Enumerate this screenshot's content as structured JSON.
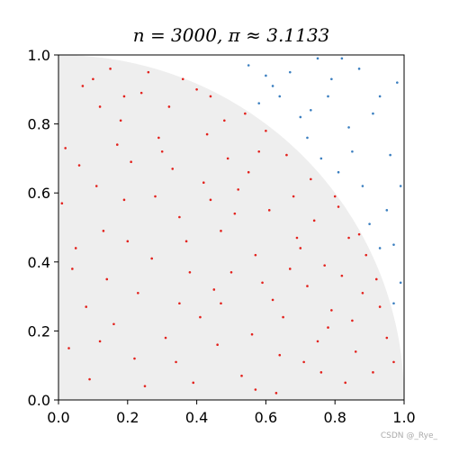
{
  "chart_data": {
    "type": "scatter",
    "title": "n = 3000, π ≈ 3.1133",
    "watermark": "CSDN @_Rye_",
    "xlim": [
      0,
      1
    ],
    "ylim": [
      0,
      1
    ],
    "xticks": [
      {
        "value": 0,
        "label": "0.0"
      },
      0.2,
      0.4,
      0.6,
      0.8,
      {
        "value": 1,
        "label": "1.0"
      }
    ],
    "yticks": [
      {
        "value": 0,
        "label": "0.0"
      },
      0.2,
      0.4,
      0.6,
      0.8,
      {
        "value": 1,
        "label": "1.0"
      }
    ],
    "series": [
      {
        "color": "#e3211c",
        "x": [
          0.12,
          0.45,
          0.78,
          0.05,
          0.33,
          0.61,
          0.22,
          0.91,
          0.48,
          0.15,
          0.67,
          0.39,
          0.84,
          0.02,
          0.27,
          0.56,
          0.73,
          0.19,
          0.44,
          0.63,
          0.08,
          0.36,
          0.52,
          0.88,
          0.29,
          0.71,
          0.14,
          0.47,
          0.95,
          0.58,
          0.24,
          0.81,
          0.03,
          0.41,
          0.69,
          0.11,
          0.53,
          0.35,
          0.77,
          0.18,
          0.62,
          0.07,
          0.49,
          0.86,
          0.31,
          0.74,
          0.13,
          0.57,
          0.26,
          0.93,
          0.42,
          0.66,
          0.09,
          0.38,
          0.83,
          0.21,
          0.54,
          0.79,
          0.01,
          0.46,
          0.68,
          0.16,
          0.59,
          0.32,
          0.89,
          0.04,
          0.51,
          0.72,
          0.25,
          0.43,
          0.97,
          0.17,
          0.64,
          0.37,
          0.85,
          0.28,
          0.55,
          0.76,
          0.1,
          0.47,
          0.6,
          0.23,
          0.82,
          0.34,
          0.06,
          0.7,
          0.4,
          0.87,
          0.2,
          0.5,
          0.75,
          0.3,
          0.65,
          0.12,
          0.44,
          0.92,
          0.57,
          0.19,
          0.8,
          0.35
        ],
        "values": [
          0.85,
          0.32,
          0.21,
          0.44,
          0.67,
          0.55,
          0.12,
          0.08,
          0.81,
          0.96,
          0.38,
          0.05,
          0.47,
          0.73,
          0.41,
          0.19,
          0.64,
          0.58,
          0.88,
          0.02,
          0.27,
          0.93,
          0.61,
          0.31,
          0.76,
          0.11,
          0.35,
          0.49,
          0.18,
          0.72,
          0.89,
          0.56,
          0.15,
          0.24,
          0.47,
          0.62,
          0.07,
          0.53,
          0.39,
          0.81,
          0.29,
          0.91,
          0.7,
          0.14,
          0.18,
          0.52,
          0.49,
          0.42,
          0.95,
          0.27,
          0.63,
          0.71,
          0.06,
          0.37,
          0.05,
          0.69,
          0.83,
          0.26,
          0.57,
          0.16,
          0.59,
          0.22,
          0.34,
          0.85,
          0.42,
          0.38,
          0.54,
          0.33,
          0.04,
          0.77,
          0.11,
          0.74,
          0.13,
          0.46,
          0.23,
          0.59,
          0.66,
          0.08,
          0.93,
          0.28,
          0.78,
          0.31,
          0.36,
          0.11,
          0.68,
          0.44,
          0.9,
          0.48,
          0.46,
          0.37,
          0.17,
          0.72,
          0.24,
          0.17,
          0.58,
          0.35,
          0.03,
          0.88,
          0.59,
          0.28
        ]
      },
      {
        "color": "#3b7fc0",
        "x": [
          0.85,
          0.62,
          0.95,
          0.78,
          0.91,
          0.55,
          0.99,
          0.72,
          0.88,
          0.67,
          0.96,
          0.81,
          0.75,
          0.93,
          0.58,
          0.98,
          0.84,
          0.7,
          0.97,
          0.64,
          0.9,
          0.79,
          0.87,
          0.99,
          0.76,
          0.93,
          0.6,
          0.82,
          0.97,
          0.73
        ],
        "values": [
          0.72,
          0.91,
          0.55,
          0.88,
          0.83,
          0.97,
          0.34,
          0.76,
          0.62,
          0.95,
          0.71,
          0.66,
          0.99,
          0.44,
          0.86,
          0.92,
          0.79,
          0.82,
          0.28,
          0.88,
          0.51,
          0.93,
          0.96,
          0.62,
          0.7,
          0.88,
          0.94,
          0.99,
          0.45,
          0.84
        ]
      }
    ]
  }
}
